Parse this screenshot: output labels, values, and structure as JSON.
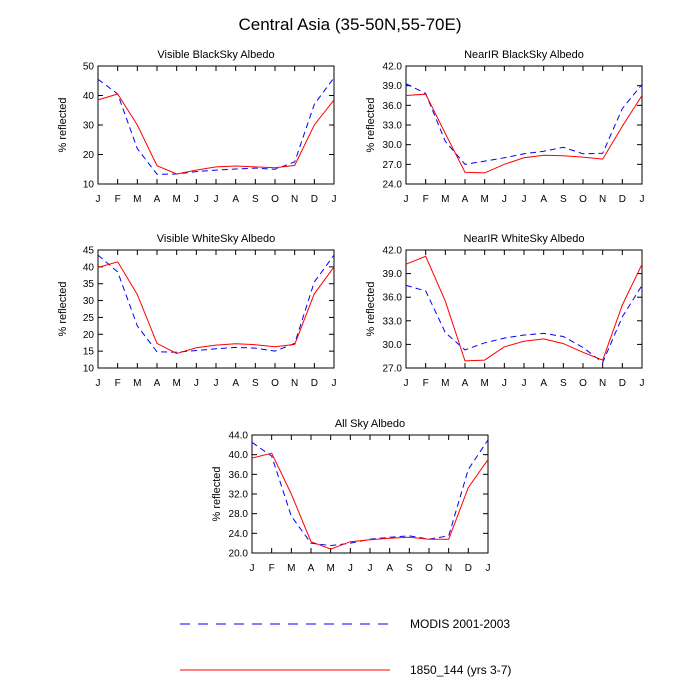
{
  "title": "Central Asia (35-50N,55-70E)",
  "legend": {
    "modis": "MODIS 2001-2003",
    "model": "1850_144 (yrs 3-7)"
  },
  "colors": {
    "modis": "#0000ff",
    "model": "#ff0000"
  },
  "chart_data": [
    {
      "type": "line",
      "title": "Visible BlackSky Albedo",
      "ylabel": "% reflected",
      "ylim": [
        10,
        50
      ],
      "yticks": [
        "10",
        "20",
        "30",
        "40",
        "50"
      ],
      "categories": [
        "J",
        "F",
        "M",
        "A",
        "M",
        "J",
        "J",
        "A",
        "S",
        "O",
        "N",
        "D",
        "J"
      ],
      "series": [
        {
          "name": "MODIS 2001-2003",
          "values": [
            45.5,
            40.5,
            22,
            13.3,
            13.4,
            14.2,
            14.7,
            15.1,
            15.4,
            15,
            17.5,
            37,
            46
          ]
        },
        {
          "name": "1850_144 (yrs 3-7)",
          "values": [
            38.5,
            40.5,
            30,
            16.2,
            13.4,
            14.7,
            15.8,
            16.1,
            15.8,
            15.5,
            16.3,
            30,
            38.5
          ]
        }
      ]
    },
    {
      "type": "line",
      "title": "NearIR BlackSky Albedo",
      "ylabel": "% reflected",
      "ylim": [
        24,
        42
      ],
      "yticks": [
        "24.0",
        "27.0",
        "30.0",
        "33.0",
        "36.0",
        "39.0",
        "42.0"
      ],
      "categories": [
        "J",
        "F",
        "M",
        "A",
        "M",
        "J",
        "J",
        "A",
        "S",
        "O",
        "N",
        "D",
        "J"
      ],
      "series": [
        {
          "name": "MODIS 2001-2003",
          "values": [
            39.3,
            37.8,
            30.5,
            27,
            27.5,
            28,
            28.6,
            29,
            29.6,
            28.6,
            28.7,
            35.5,
            39.2
          ]
        },
        {
          "name": "1850_144 (yrs 3-7)",
          "values": [
            37.5,
            37.7,
            31.7,
            25.8,
            25.7,
            27,
            28,
            28.4,
            28.3,
            28.1,
            27.8,
            32.8,
            37.5
          ]
        }
      ]
    },
    {
      "type": "line",
      "title": "Visible WhiteSky Albedo",
      "ylabel": "% reflected",
      "ylim": [
        10,
        45
      ],
      "yticks": [
        "10",
        "15",
        "20",
        "25",
        "30",
        "35",
        "40",
        "45"
      ],
      "categories": [
        "J",
        "F",
        "M",
        "A",
        "M",
        "J",
        "J",
        "A",
        "S",
        "O",
        "N",
        "D",
        "J"
      ],
      "series": [
        {
          "name": "MODIS 2001-2003",
          "values": [
            43.5,
            38.5,
            22.5,
            14.8,
            14.7,
            15.2,
            15.7,
            16.1,
            15.9,
            15,
            17.3,
            35.5,
            43.5
          ]
        },
        {
          "name": "1850_144 (yrs 3-7)",
          "values": [
            39.8,
            41.5,
            31.8,
            17.3,
            14.3,
            16,
            16.8,
            17.2,
            16.9,
            16.3,
            17,
            32,
            40
          ]
        }
      ]
    },
    {
      "type": "line",
      "title": "NearIR WhiteSky Albedo",
      "ylabel": "% reflected",
      "ylim": [
        27,
        42
      ],
      "yticks": [
        "27.0",
        "30.0",
        "33.0",
        "36.0",
        "39.0",
        "42.0"
      ],
      "categories": [
        "J",
        "F",
        "M",
        "A",
        "M",
        "J",
        "J",
        "A",
        "S",
        "O",
        "N",
        "D",
        "J"
      ],
      "series": [
        {
          "name": "MODIS 2001-2003",
          "values": [
            37.5,
            36.8,
            31.5,
            29.3,
            30.2,
            30.8,
            31.2,
            31.4,
            31,
            29.6,
            27.7,
            33.5,
            37.5
          ]
        },
        {
          "name": "1850_144 (yrs 3-7)",
          "values": [
            40.2,
            41.2,
            35.5,
            27.9,
            28,
            29.7,
            30.4,
            30.7,
            30.1,
            29,
            28,
            35,
            40.2
          ]
        }
      ]
    },
    {
      "type": "line",
      "title": "All Sky Albedo",
      "ylabel": "% reflected",
      "ylim": [
        20,
        44
      ],
      "yticks": [
        "20.0",
        "24.0",
        "28.0",
        "32.0",
        "36.0",
        "40.0",
        "44.0"
      ],
      "categories": [
        "J",
        "F",
        "M",
        "A",
        "M",
        "J",
        "J",
        "A",
        "S",
        "O",
        "N",
        "D",
        "J"
      ],
      "series": [
        {
          "name": "MODIS 2001-2003",
          "values": [
            42.5,
            39.7,
            27.5,
            22,
            21.5,
            22,
            22.8,
            23.2,
            23.5,
            22.8,
            23.5,
            37,
            43
          ]
        },
        {
          "name": "1850_144 (yrs 3-7)",
          "values": [
            39.3,
            40.3,
            32,
            22.3,
            20.8,
            22.3,
            22.7,
            23,
            23.2,
            22.8,
            22.8,
            33.3,
            39
          ]
        }
      ]
    }
  ]
}
